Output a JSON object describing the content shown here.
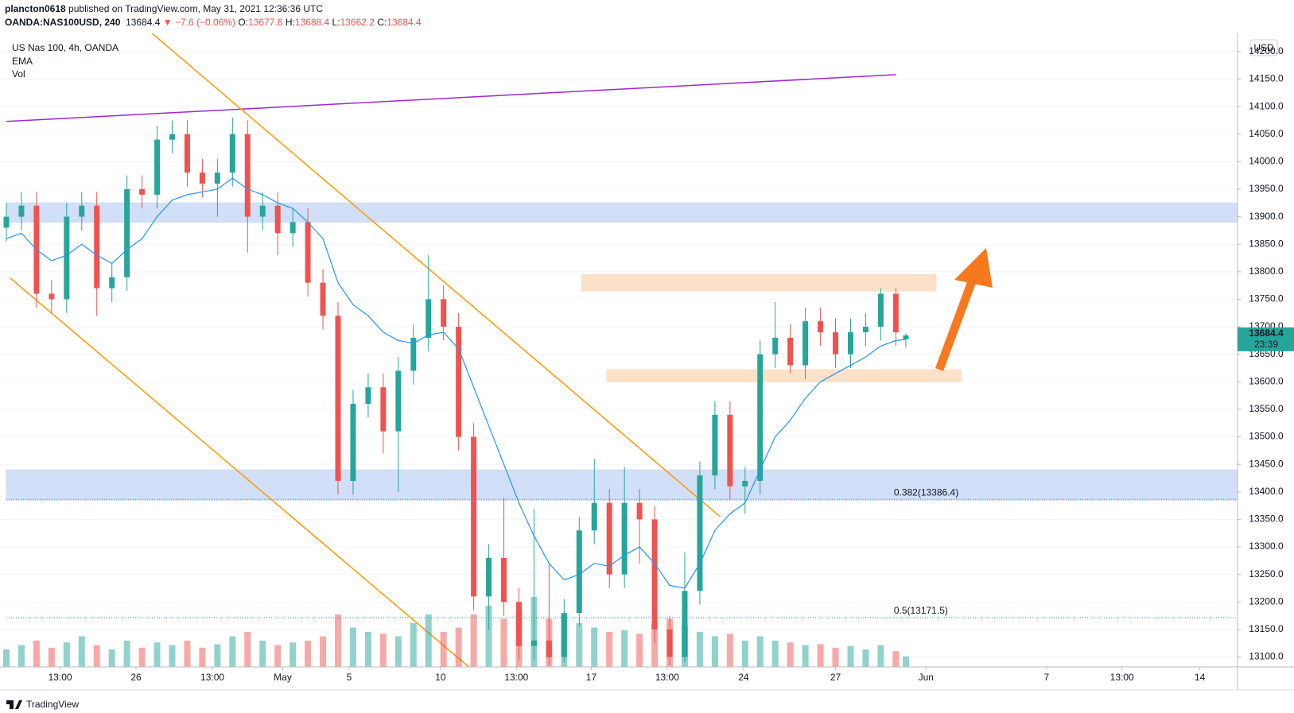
{
  "header": {
    "author": "plancton0618",
    "published": "published on TradingView.com, May 31, 2021 12:36:36 UTC",
    "symbol": "OANDA:NAS100USD, 240",
    "last": "13684.4",
    "change": "▼ −7.6 (−0.06%)",
    "ohlc": [
      {
        "key": "O:",
        "value": "13677.6"
      },
      {
        "key": "H:",
        "value": "13688.4"
      },
      {
        "key": "L:",
        "value": "13662.2"
      },
      {
        "key": "C:",
        "value": "13684.4"
      }
    ],
    "currency": "USD"
  },
  "legend": [
    "US Nas 100, 4h, OANDA",
    "EMA",
    "Vol"
  ],
  "footer": "TradingView",
  "chart_data": {
    "type": "candlestick",
    "x": [
      0,
      3,
      6,
      9,
      12,
      15,
      18,
      21,
      24,
      27,
      30,
      33,
      36,
      39,
      42,
      45,
      48,
      51,
      54,
      57,
      60,
      63,
      66,
      69,
      72,
      75,
      78,
      81,
      84,
      87,
      90,
      93,
      96,
      99,
      102,
      105,
      108,
      111,
      114,
      117,
      120,
      123,
      126,
      129,
      132,
      135,
      138,
      141,
      144,
      147,
      150,
      153,
      156,
      159,
      162,
      165,
      168,
      171,
      174,
      177,
      179
    ],
    "open": [
      13880,
      13900,
      13920,
      13760,
      13750,
      13900,
      13920,
      13770,
      13790,
      13950,
      13940,
      14040,
      14050,
      13980,
      13960,
      13980,
      14050,
      13900,
      13920,
      13870,
      13890,
      13780,
      13720,
      13420,
      13560,
      13590,
      13510,
      13620,
      13680,
      13750,
      13700,
      13500,
      13210,
      13280,
      13200,
      13120,
      13130,
      13100,
      13180,
      13330,
      13380,
      13250,
      13380,
      13350,
      13150,
      13100,
      13220,
      13430,
      13540,
      13410,
      13420,
      13650,
      13680,
      13630,
      13710,
      13690,
      13650,
      13690,
      13700,
      13760,
      13677.6
    ],
    "high": [
      13925,
      13945,
      13945,
      13785,
      13925,
      13945,
      13945,
      13815,
      13975,
      13975,
      14065,
      14075,
      14075,
      14005,
      14005,
      14080,
      14075,
      13945,
      13945,
      13915,
      13915,
      13805,
      13745,
      13585,
      13615,
      13615,
      13645,
      13705,
      13830,
      13775,
      13725,
      13525,
      13305,
      13390,
      13225,
      13370,
      13270,
      13205,
      13355,
      13460,
      13405,
      13445,
      13405,
      13375,
      13175,
      13290,
      13455,
      13565,
      13565,
      13445,
      13675,
      13745,
      13705,
      13735,
      13735,
      13715,
      13715,
      13725,
      13770,
      13770,
      13688.4
    ],
    "low": [
      13855,
      13875,
      13735,
      13725,
      13725,
      13875,
      13720,
      13745,
      13765,
      13915,
      13915,
      14015,
      13955,
      13935,
      13900,
      13955,
      13835,
      13875,
      13830,
      13845,
      13755,
      13695,
      13395,
      13395,
      13535,
      13470,
      13400,
      13595,
      13655,
      13675,
      13475,
      13185,
      13150,
      13175,
      13095,
      13095,
      13085,
      13090,
      13155,
      13305,
      13225,
      13225,
      13270,
      13125,
      13085,
      13090,
      13195,
      13405,
      13385,
      13360,
      13395,
      13625,
      13615,
      13605,
      13665,
      13625,
      13625,
      13665,
      13675,
      13665,
      13662.2
    ],
    "close": [
      13900,
      13920,
      13760,
      13750,
      13900,
      13920,
      13770,
      13790,
      13950,
      13940,
      14040,
      14050,
      13980,
      13960,
      13980,
      14050,
      13900,
      13920,
      13870,
      13890,
      13780,
      13720,
      13420,
      13560,
      13590,
      13510,
      13620,
      13680,
      13750,
      13700,
      13500,
      13210,
      13280,
      13200,
      13120,
      13130,
      13100,
      13180,
      13330,
      13380,
      13250,
      13380,
      13350,
      13150,
      13100,
      13220,
      13430,
      13540,
      13410,
      13420,
      13650,
      13680,
      13630,
      13710,
      13690,
      13650,
      13690,
      13700,
      13760,
      13690,
      13684.4
    ],
    "ema": [
      13860,
      13870,
      13840,
      13820,
      13830,
      13850,
      13830,
      13815,
      13840,
      13860,
      13900,
      13930,
      13940,
      13945,
      13950,
      13970,
      13950,
      13940,
      13925,
      13915,
      13890,
      13860,
      13780,
      13740,
      13720,
      13690,
      13675,
      13670,
      13685,
      13690,
      13660,
      13590,
      13520,
      13450,
      13380,
      13320,
      13270,
      13240,
      13250,
      13270,
      13265,
      13285,
      13300,
      13270,
      13230,
      13225,
      13270,
      13330,
      13360,
      13380,
      13440,
      13500,
      13530,
      13570,
      13600,
      13615,
      13630,
      13645,
      13665,
      13675,
      13677
    ],
    "volume": [
      20,
      25,
      30,
      22,
      28,
      35,
      25,
      20,
      30,
      22,
      28,
      25,
      30,
      22,
      26,
      35,
      40,
      30,
      25,
      28,
      30,
      35,
      60,
      45,
      40,
      38,
      35,
      50,
      60,
      40,
      45,
      60,
      70,
      55,
      65,
      80,
      55,
      60,
      50,
      45,
      40,
      42,
      38,
      50,
      55,
      48,
      40,
      35,
      38,
      30,
      35,
      30,
      28,
      25,
      26,
      22,
      24,
      20,
      25,
      18,
      12
    ],
    "volume_lim": [
      0,
      100
    ],
    "up_color": "#26a69a",
    "down_color": "#ef5350",
    "ema_color": "#2196f3",
    "xlim": [
      0,
      245
    ],
    "ylim": [
      13082,
      14233
    ],
    "yticks": [
      {
        "value": 13100,
        "label": "13100.0"
      },
      {
        "value": 13150,
        "label": "13150.0"
      },
      {
        "value": 13200,
        "label": "13200.0"
      },
      {
        "value": 13250,
        "label": "13250.0"
      },
      {
        "value": 13300,
        "label": "13300.0"
      },
      {
        "value": 13350,
        "label": "13350.0"
      },
      {
        "value": 13400,
        "label": "13400.0"
      },
      {
        "value": 13450,
        "label": "13450.0"
      },
      {
        "value": 13500,
        "label": "13500.0"
      },
      {
        "value": 13550,
        "label": "13550.0"
      },
      {
        "value": 13600,
        "label": "13600.0"
      },
      {
        "value": 13650,
        "label": "13650.0"
      },
      {
        "value": 13700,
        "label": "13700.0"
      },
      {
        "value": 13750,
        "label": "13750.0"
      },
      {
        "value": 13800,
        "label": "13800.0"
      },
      {
        "value": 13850,
        "label": "13850.0"
      },
      {
        "value": 13900,
        "label": "13900.0"
      },
      {
        "value": 13950,
        "label": "13950.0"
      },
      {
        "value": 14000,
        "label": "14000.0"
      },
      {
        "value": 14050,
        "label": "14050.0"
      },
      {
        "value": 14100,
        "label": "14100.0"
      },
      {
        "value": 14150,
        "label": "14150.0"
      },
      {
        "value": 14200,
        "label": "14200.0"
      }
    ],
    "xticks": [
      {
        "value": 10.7,
        "label": "13:00"
      },
      {
        "value": 25.8,
        "label": "26"
      },
      {
        "value": 41,
        "label": "13:00"
      },
      {
        "value": 55,
        "label": "May"
      },
      {
        "value": 68.2,
        "label": "5"
      },
      {
        "value": 86.4,
        "label": "10"
      },
      {
        "value": 101.5,
        "label": "13:00"
      },
      {
        "value": 116.4,
        "label": "17"
      },
      {
        "value": 131.5,
        "label": "13:00"
      },
      {
        "value": 146.7,
        "label": "24"
      },
      {
        "value": 165,
        "label": "27"
      },
      {
        "value": 183,
        "label": "Jun"
      },
      {
        "value": 207,
        "label": "7"
      },
      {
        "value": 222,
        "label": "13:00"
      },
      {
        "value": 237.5,
        "label": "14"
      }
    ],
    "zones": [
      {
        "x": [
          0,
          245
        ],
        "y": [
          13890,
          13925
        ],
        "color": "#c9d9f7"
      },
      {
        "x": [
          0,
          245
        ],
        "y": [
          13385,
          13440
        ],
        "color": "#c9d9f7"
      },
      {
        "x": [
          114.5,
          185
        ],
        "y": [
          13765,
          13795
        ],
        "color": "#fcdcc0"
      },
      {
        "x": [
          119.5,
          190
        ],
        "y": [
          13600,
          13622
        ],
        "color": "#fcdcc0"
      }
    ],
    "trendlines": [
      {
        "x": [
          0,
          177
        ],
        "y": [
          14073,
          14158
        ],
        "color": "#9c27d0"
      },
      {
        "x": [
          29,
          142
        ],
        "y": [
          14233,
          13355
        ],
        "color": "#ff9800"
      },
      {
        "x": [
          0.7,
          92
        ],
        "y": [
          13789,
          13082
        ],
        "color": "#ff9800"
      }
    ],
    "fib_levels": [
      {
        "value": 13386.4,
        "label": "0.382(13386.4)"
      },
      {
        "value": 13171.5,
        "label": "0.5(13171.5)"
      }
    ],
    "fib_color": "#2196f3",
    "fib_label_x": 176.6,
    "countdown": "23:39"
  }
}
